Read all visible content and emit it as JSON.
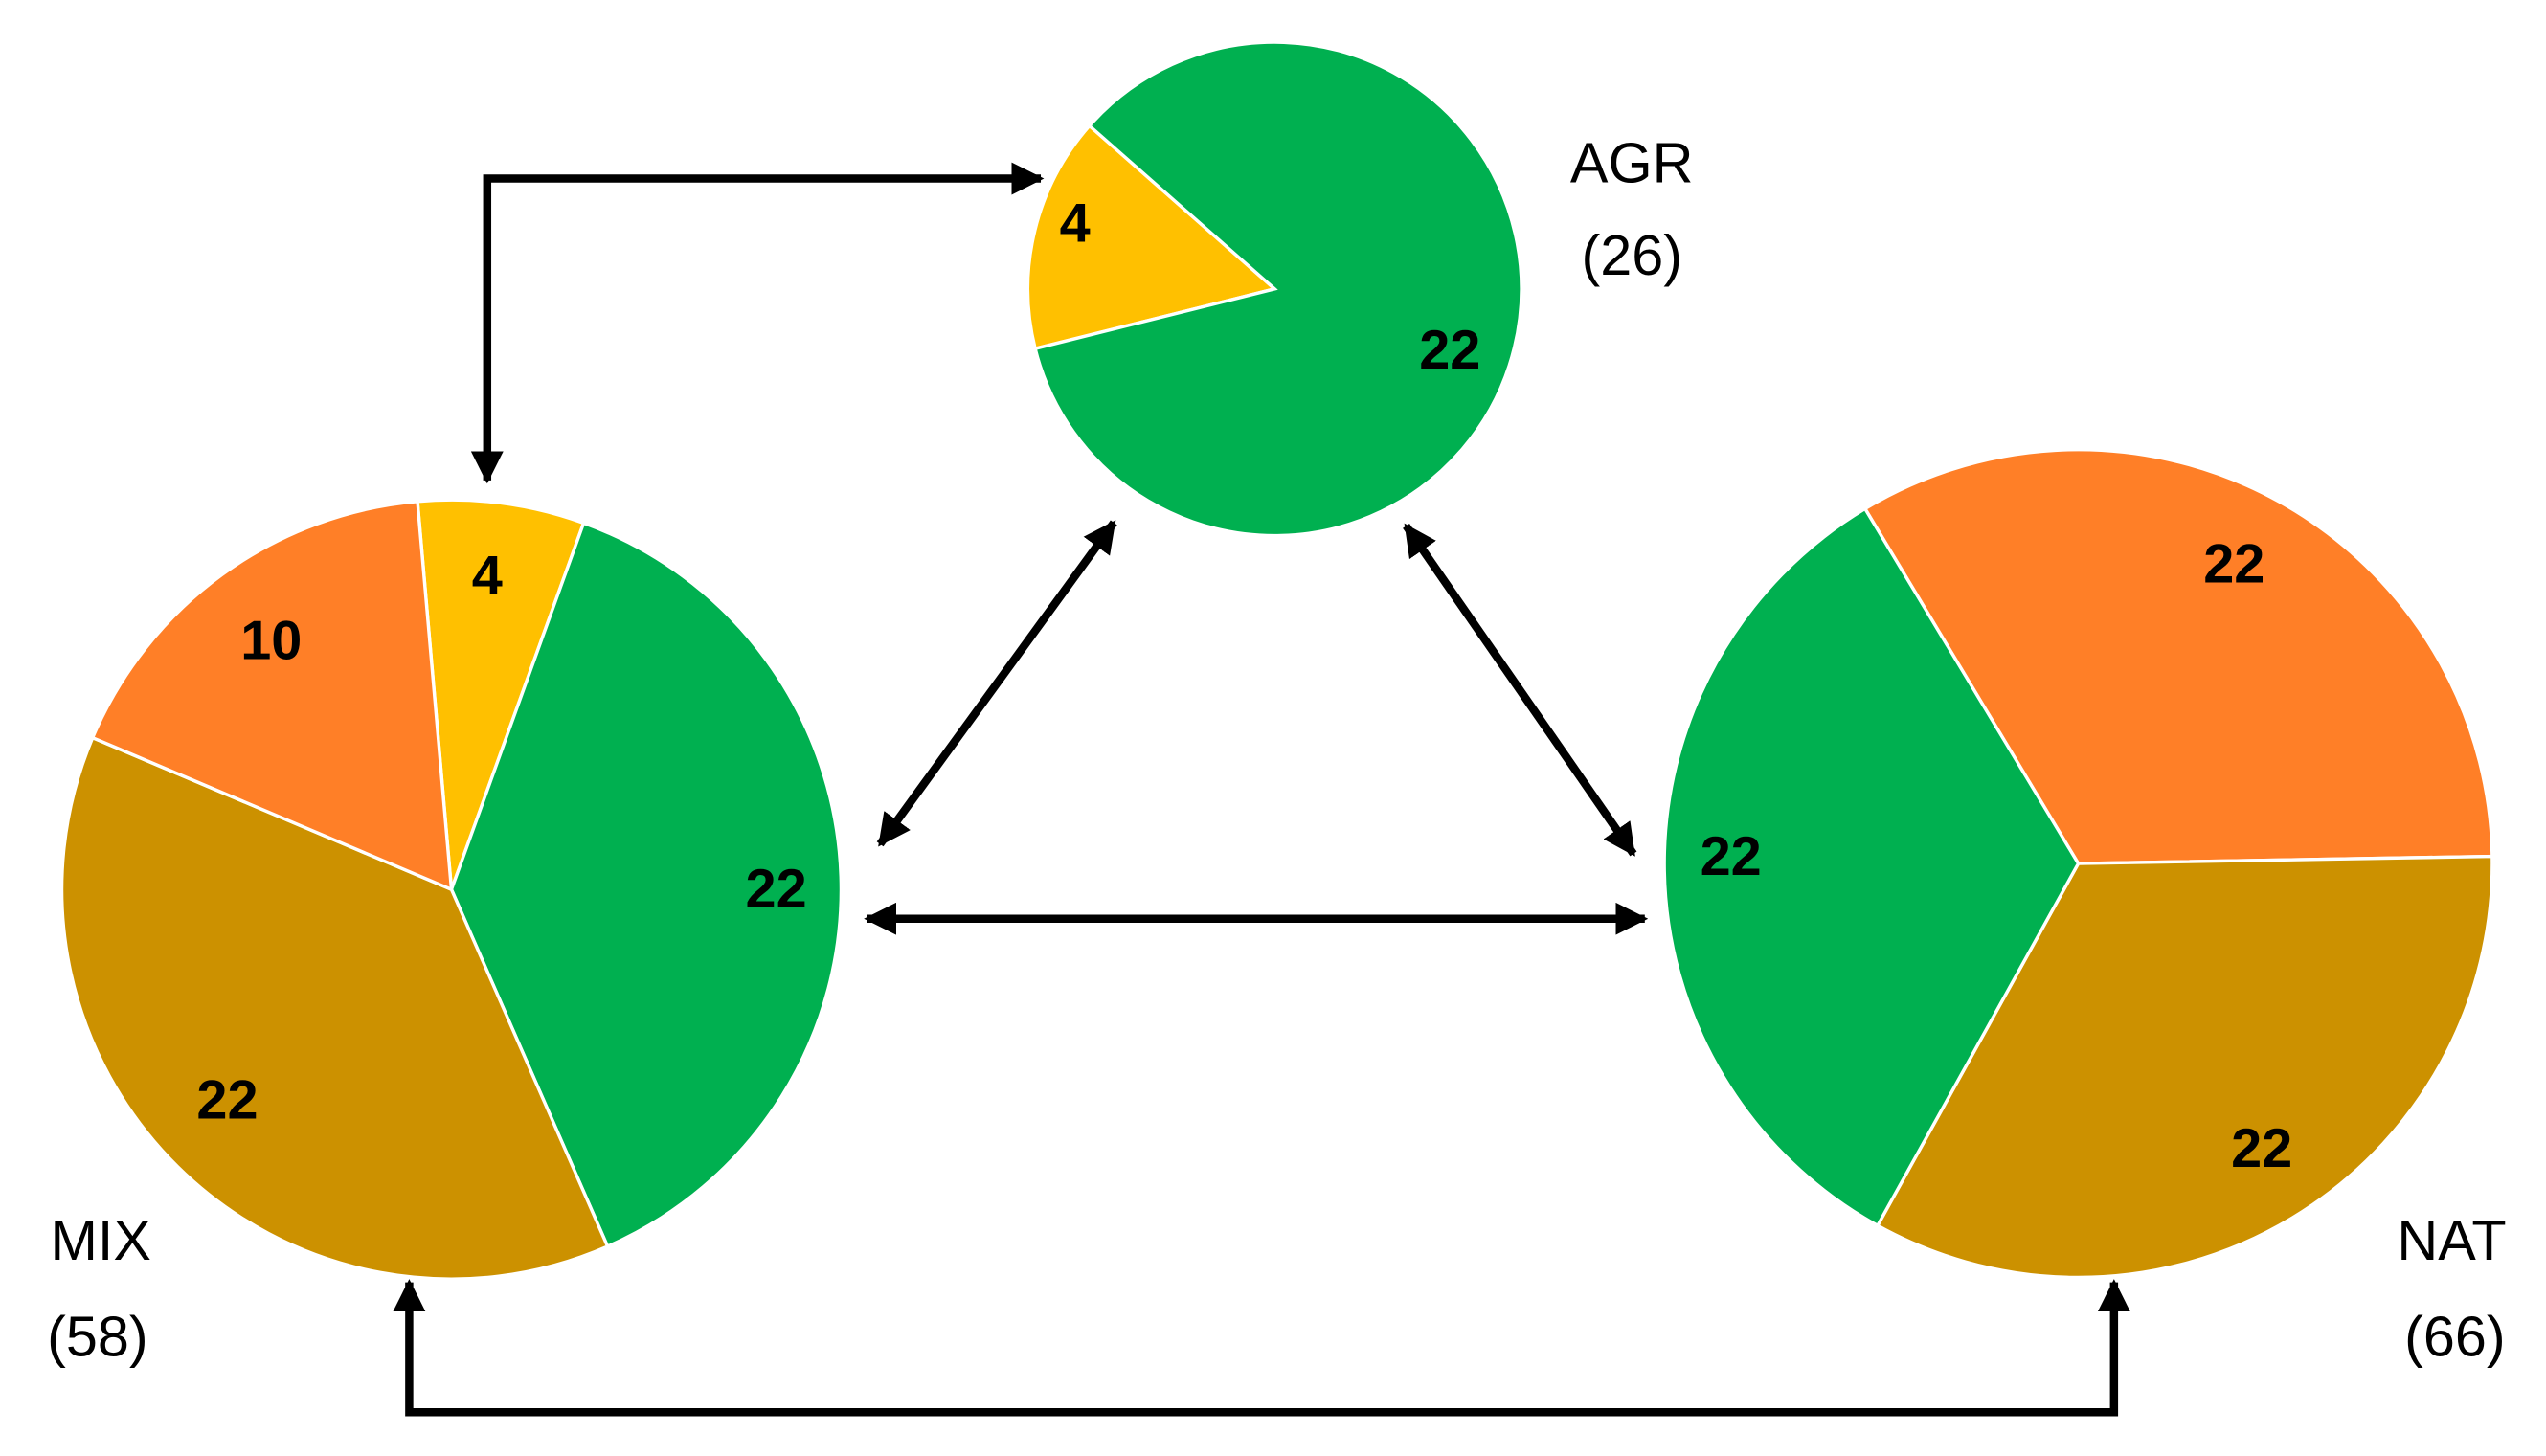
{
  "colors": {
    "green": "#00B050",
    "yellow": "#FFC000",
    "orange": "#FF7F27",
    "brown": "#CC9100",
    "arrow": "#000000"
  },
  "pies": [
    {
      "id": "agr",
      "label": "AGR",
      "total": "(26)",
      "slices": [
        {
          "value": 4,
          "label": "4",
          "color": "#FFC000"
        },
        {
          "value": 22,
          "label": "22",
          "color": "#00B050"
        }
      ]
    },
    {
      "id": "mix",
      "label": "MIX",
      "total": "(58)",
      "slices": [
        {
          "value": 4,
          "label": "4",
          "color": "#FFC000"
        },
        {
          "value": 22,
          "label": "22",
          "color": "#00B050"
        },
        {
          "value": 22,
          "label": "22",
          "color": "#CC9100"
        },
        {
          "value": 10,
          "label": "10",
          "color": "#FF7F27"
        }
      ]
    },
    {
      "id": "nat",
      "label": "NAT",
      "total": "(66)",
      "slices": [
        {
          "value": 22,
          "label": "22",
          "color": "#FF7F27"
        },
        {
          "value": 22,
          "label": "22",
          "color": "#CC9100"
        },
        {
          "value": 22,
          "label": "22",
          "color": "#00B050"
        }
      ]
    }
  ],
  "arrows": [
    {
      "from": "MIX",
      "to": "AGR",
      "direction": "both"
    },
    {
      "from": "MIX",
      "to": "AGR",
      "direction": "both"
    },
    {
      "from": "AGR",
      "to": "NAT",
      "direction": "both"
    },
    {
      "from": "MIX",
      "to": "NAT",
      "direction": "both"
    },
    {
      "from": "MIX",
      "to": "NAT",
      "direction": "both"
    }
  ]
}
